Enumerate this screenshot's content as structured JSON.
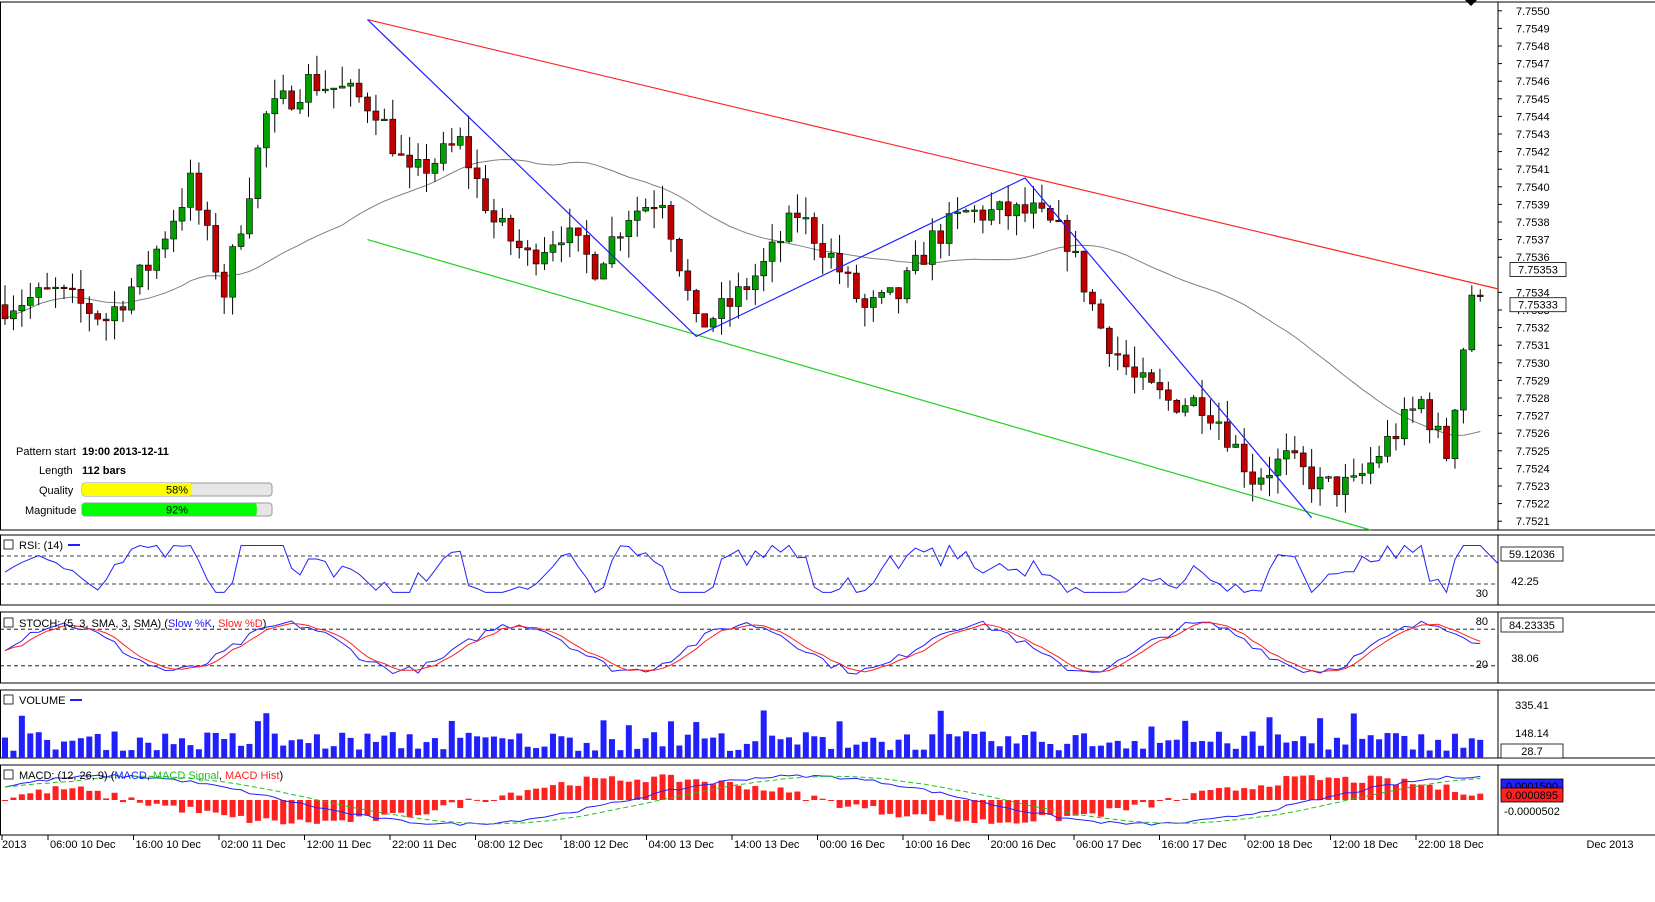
{
  "chart_data": {
    "type": "candlestick",
    "main": {
      "price_ticks": [
        "7.7550",
        "7.7549",
        "7.7548",
        "7.7547",
        "7.7546",
        "7.7545",
        "7.7544",
        "7.7543",
        "7.7542",
        "7.7541",
        "7.7540",
        "7.7539",
        "7.7538",
        "7.7537",
        "7.7536",
        "7.7534",
        "7.7533",
        "7.7532",
        "7.7531",
        "7.7530",
        "7.7529",
        "7.7528",
        "7.7527",
        "7.7526",
        "7.7525",
        "7.7524",
        "7.7523",
        "7.7522",
        "7.7521"
      ],
      "ylim": [
        7.75205,
        7.75505
      ],
      "current_price": "7.75333",
      "ma_value": "7.75353",
      "colors": {
        "up": "#00a000",
        "down": "#c00000",
        "ma": "#808080",
        "resistance": "#ff2020",
        "support": "#20d020",
        "zigzag": "#2020ff"
      }
    },
    "pattern": {
      "start_label": "Pattern start",
      "start_value": "19:00 2013-12-11",
      "length_label": "Length",
      "length_value": "112 bars",
      "quality_label": "Quality",
      "quality_value": "58%",
      "quality_fraction": 0.58,
      "magnitude_label": "Magnitude",
      "magnitude_value": "92%",
      "magnitude_fraction": 0.92
    },
    "rsi": {
      "title": "RSI: (14)",
      "value": "59.12036",
      "level_mid": "42.25",
      "level_low": "30"
    },
    "stoch": {
      "title_main": "STOCH: (5, 3, SMA, 3, SMA)",
      "title_k": "Slow %K",
      "title_d": "Slow %D",
      "value": "84.23335",
      "level_mid": "38.06",
      "level_high": "80",
      "level_low": "20"
    },
    "volume": {
      "title": "VOLUME",
      "value": "28.7",
      "tick_high": "335.41",
      "tick_mid": "148.14"
    },
    "macd": {
      "title_main": "MACD: (12, 26, 9)",
      "title_macd": "MACD",
      "title_signal": "MACD Signal",
      "title_hist": "MACD Hist",
      "value_macd": "0.0001500",
      "value_hist": "0.0000895",
      "tick_low": "-0.0000502"
    },
    "x_labels": [
      "2013",
      "06:00 10 Dec",
      "16:00 10 Dec",
      "02:00 11 Dec",
      "12:00 11 Dec",
      "22:00 11 Dec",
      "08:00 12 Dec",
      "18:00 12 Dec",
      "04:00 13 Dec",
      "14:00 13 Dec",
      "00:00 16 Dec",
      "10:00 16 Dec",
      "20:00 16 Dec",
      "06:00 17 Dec",
      "16:00 17 Dec",
      "02:00 18 Dec",
      "12:00 18 Dec",
      "22:00 18 Dec"
    ],
    "x_right_label": "Dec 2013"
  }
}
